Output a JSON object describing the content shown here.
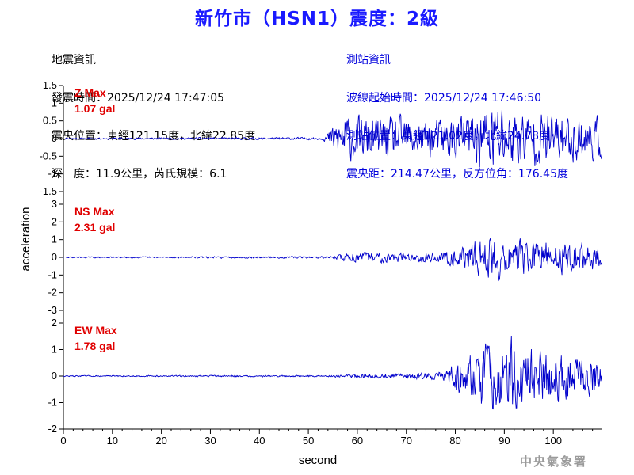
{
  "header": {
    "title": "新竹市（HSN1）震度：2級"
  },
  "quake_info": {
    "heading": "地震資訊",
    "origin_time": "發震時間：2025/12/24 17:47:05",
    "epicenter": "震央位置：東經121.15度，北緯22.85度",
    "depth_magnitude": "深　度：11.9公里，芮氏規模：6.1"
  },
  "station_info": {
    "heading": "測站資訊",
    "wave_start": "波線起始時間：2025/12/24 17:46:50",
    "location": "測站位置：東經121.02度，北緯24.78度",
    "distance": "震央距：214.47公里，反方位角：176.45度"
  },
  "footer": {
    "agency": "中央氣象署"
  },
  "colors": {
    "title": "#1a1aff",
    "trace": "#0000cc",
    "max_label": "#e00000",
    "station_text": "#0000dd"
  },
  "chart_data": {
    "type": "line",
    "xlabel": "second",
    "ylabel": "acceleration",
    "xlim": [
      0,
      110
    ],
    "x_ticks": [
      0,
      10,
      20,
      30,
      40,
      50,
      60,
      70,
      80,
      90,
      100
    ],
    "panels": [
      {
        "name": "Z",
        "max_title": "Z Max",
        "max_value": "1.07 gal",
        "ylim": [
          -1.5,
          1.5
        ],
        "y_ticks": [
          1.5,
          1,
          0.5,
          0,
          -0.5,
          -1,
          -1.5
        ],
        "envelope": [
          [
            0,
            0.02
          ],
          [
            53,
            0.03
          ],
          [
            55,
            0.3
          ],
          [
            57,
            0.6
          ],
          [
            60,
            0.5
          ],
          [
            65,
            0.5
          ],
          [
            70,
            0.5
          ],
          [
            75,
            0.45
          ],
          [
            80,
            0.5
          ],
          [
            85,
            0.7
          ],
          [
            88,
            0.9
          ],
          [
            92,
            0.7
          ],
          [
            100,
            0.6
          ],
          [
            110,
            0.5
          ]
        ],
        "seed": 11
      },
      {
        "name": "NS",
        "max_title": "NS Max",
        "max_value": "2.31 gal",
        "ylim": [
          -3,
          3
        ],
        "y_ticks": [
          3,
          2,
          1,
          0,
          -1,
          -2,
          -3
        ],
        "envelope": [
          [
            0,
            0.03
          ],
          [
            55,
            0.05
          ],
          [
            57,
            0.2
          ],
          [
            62,
            0.25
          ],
          [
            70,
            0.2
          ],
          [
            78,
            0.3
          ],
          [
            82,
            0.5
          ],
          [
            85,
            0.9
          ],
          [
            88,
            1.3
          ],
          [
            90,
            0.9
          ],
          [
            95,
            0.8
          ],
          [
            100,
            0.8
          ],
          [
            110,
            0.6
          ]
        ],
        "seed": 29
      },
      {
        "name": "EW",
        "max_title": "EW Max",
        "max_value": "1.78 gal",
        "ylim": [
          -2,
          2
        ],
        "y_ticks": [
          2,
          1,
          0,
          -1,
          -2
        ],
        "envelope": [
          [
            0,
            0.02
          ],
          [
            55,
            0.03
          ],
          [
            60,
            0.06
          ],
          [
            70,
            0.08
          ],
          [
            78,
            0.15
          ],
          [
            80,
            0.5
          ],
          [
            84,
            0.9
          ],
          [
            88,
            1.1
          ],
          [
            92,
            1.2
          ],
          [
            96,
            0.9
          ],
          [
            100,
            0.8
          ],
          [
            110,
            0.5
          ]
        ],
        "seed": 47
      }
    ]
  }
}
